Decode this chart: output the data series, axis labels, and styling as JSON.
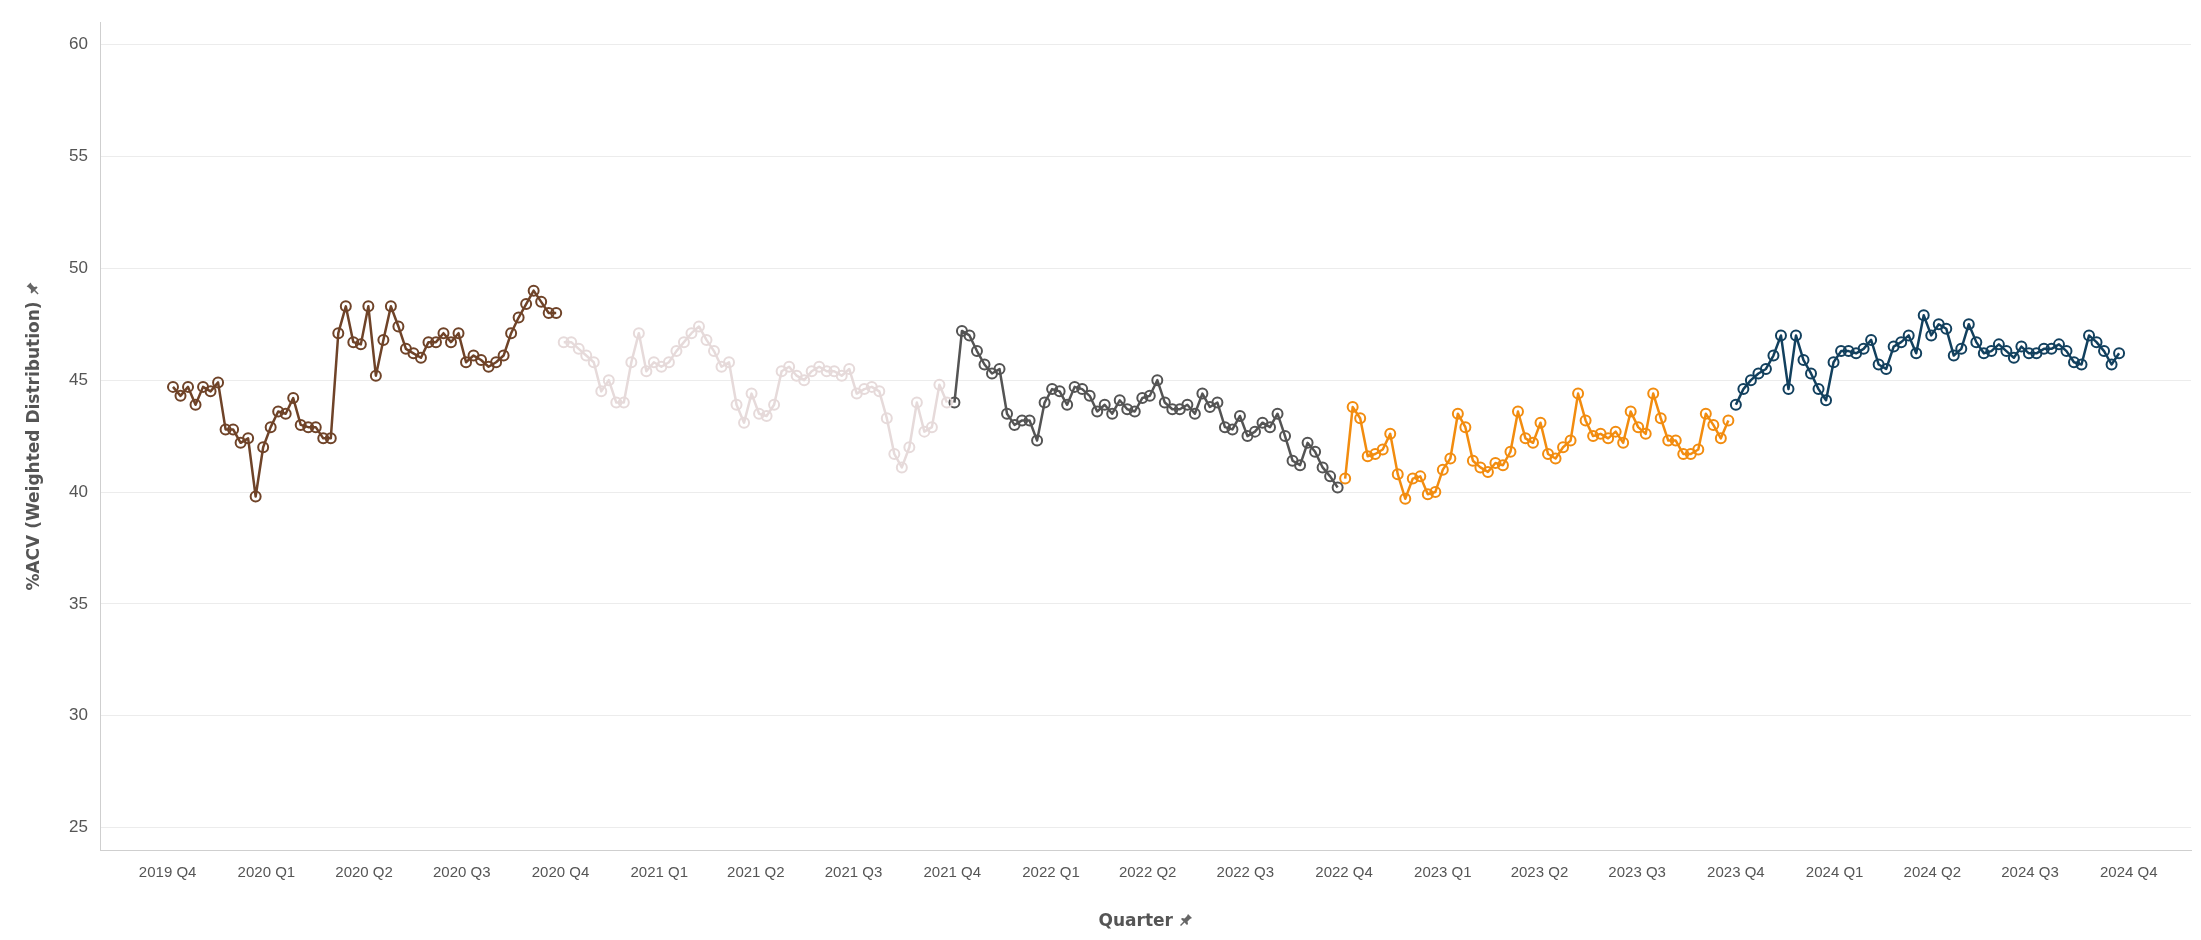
{
  "chart_data": {
    "type": "line",
    "xlabel": "Quarter",
    "ylabel": "%ACV (Weighted Distribution)",
    "xlim": [
      "2019-07-30",
      "2024-11-28"
    ],
    "ylim": [
      24,
      61
    ],
    "xticks": [
      {
        "value": "2019-10-01",
        "label": "2019 Q4"
      },
      {
        "value": "2020-01-01",
        "label": "2020 Q1"
      },
      {
        "value": "2020-04-01",
        "label": "2020 Q2"
      },
      {
        "value": "2020-07-01",
        "label": "2020 Q3"
      },
      {
        "value": "2020-10-01",
        "label": "2020 Q4"
      },
      {
        "value": "2021-01-01",
        "label": "2021 Q1"
      },
      {
        "value": "2021-04-01",
        "label": "2021 Q2"
      },
      {
        "value": "2021-07-01",
        "label": "2021 Q3"
      },
      {
        "value": "2021-10-01",
        "label": "2021 Q4"
      },
      {
        "value": "2022-01-01",
        "label": "2022 Q1"
      },
      {
        "value": "2022-04-01",
        "label": "2022 Q2"
      },
      {
        "value": "2022-07-01",
        "label": "2022 Q3"
      },
      {
        "value": "2022-10-01",
        "label": "2022 Q4"
      },
      {
        "value": "2023-01-01",
        "label": "2023 Q1"
      },
      {
        "value": "2023-04-01",
        "label": "2023 Q2"
      },
      {
        "value": "2023-07-01",
        "label": "2023 Q3"
      },
      {
        "value": "2023-10-01",
        "label": "2023 Q4"
      },
      {
        "value": "2024-01-01",
        "label": "2024 Q1"
      },
      {
        "value": "2024-04-01",
        "label": "2024 Q2"
      },
      {
        "value": "2024-07-01",
        "label": "2024 Q3"
      },
      {
        "value": "2024-10-01",
        "label": "2024 Q4"
      }
    ],
    "yticks": [
      25,
      30,
      35,
      40,
      45,
      50,
      55,
      60
    ],
    "grid": "y",
    "legend": false,
    "marker": "circle",
    "line_style": "solid",
    "series": [
      {
        "color": "#6f4328",
        "x": [
          "2019-10-06",
          "2019-10-13",
          "2019-10-20",
          "2019-10-27",
          "2019-11-03",
          "2019-11-10",
          "2019-11-17",
          "2019-11-24",
          "2019-12-01",
          "2019-12-08",
          "2019-12-15",
          "2019-12-22",
          "2019-12-29",
          "2020-01-05",
          "2020-01-12",
          "2020-01-19",
          "2020-01-26",
          "2020-02-02",
          "2020-02-09",
          "2020-02-16",
          "2020-02-23",
          "2020-03-01",
          "2020-03-08",
          "2020-03-15",
          "2020-03-22",
          "2020-03-29",
          "2020-04-05",
          "2020-04-12",
          "2020-04-19",
          "2020-04-26",
          "2020-05-03",
          "2020-05-10",
          "2020-05-17",
          "2020-05-24",
          "2020-05-31",
          "2020-06-07",
          "2020-06-14",
          "2020-06-21",
          "2020-06-28",
          "2020-07-05",
          "2020-07-12",
          "2020-07-19",
          "2020-07-26",
          "2020-08-02",
          "2020-08-09",
          "2020-08-16",
          "2020-08-23",
          "2020-08-30",
          "2020-09-06",
          "2020-09-13",
          "2020-09-20",
          "2020-09-27"
        ],
        "values": [
          44.7,
          44.3,
          44.7,
          43.9,
          44.7,
          44.5,
          44.9,
          42.8,
          42.8,
          42.2,
          42.4,
          39.8,
          42.0,
          42.9,
          43.6,
          43.5,
          44.2,
          43.0,
          42.9,
          42.9,
          42.4,
          42.4,
          47.1,
          48.3,
          46.7,
          46.6,
          48.3,
          45.2,
          46.8,
          48.3,
          47.4,
          46.4,
          46.2,
          46.0,
          46.7,
          46.7,
          47.1,
          46.7,
          47.1,
          45.8,
          46.1,
          45.9,
          45.6,
          45.8,
          46.1,
          47.1,
          47.8,
          48.4,
          49.0,
          48.5,
          48.0,
          48.0
        ]
      },
      {
        "color": "#e6dada",
        "x": [
          "2020-10-04",
          "2020-10-11",
          "2020-10-18",
          "2020-10-25",
          "2020-11-01",
          "2020-11-08",
          "2020-11-15",
          "2020-11-22",
          "2020-11-29",
          "2020-12-06",
          "2020-12-13",
          "2020-12-20",
          "2020-12-27",
          "2021-01-03",
          "2021-01-10",
          "2021-01-17",
          "2021-01-24",
          "2021-01-31",
          "2021-02-07",
          "2021-02-14",
          "2021-02-21",
          "2021-02-28",
          "2021-03-07",
          "2021-03-14",
          "2021-03-21",
          "2021-03-28",
          "2021-04-04",
          "2021-04-11",
          "2021-04-18",
          "2021-04-25",
          "2021-05-02",
          "2021-05-09",
          "2021-05-16",
          "2021-05-23",
          "2021-05-30",
          "2021-06-06",
          "2021-06-13",
          "2021-06-20",
          "2021-06-27",
          "2021-07-04",
          "2021-07-11",
          "2021-07-18",
          "2021-07-25",
          "2021-08-01",
          "2021-08-08",
          "2021-08-15",
          "2021-08-22",
          "2021-08-29",
          "2021-09-05",
          "2021-09-12",
          "2021-09-19",
          "2021-09-26"
        ],
        "values": [
          46.7,
          46.7,
          46.4,
          46.1,
          45.8,
          44.5,
          45.0,
          44.0,
          44.0,
          45.8,
          47.1,
          45.4,
          45.8,
          45.6,
          45.8,
          46.3,
          46.7,
          47.1,
          47.4,
          46.8,
          46.3,
          45.6,
          45.8,
          43.9,
          43.1,
          44.4,
          43.5,
          43.4,
          43.9,
          45.4,
          45.6,
          45.2,
          45.0,
          45.4,
          45.6,
          45.4,
          45.4,
          45.2,
          45.5,
          44.4,
          44.6,
          44.7,
          44.5,
          43.3,
          41.7,
          41.1,
          42.0,
          44.0,
          42.7,
          42.9,
          44.8,
          44.0
        ]
      },
      {
        "color": "#545454",
        "x": [
          "2021-10-03",
          "2021-10-10",
          "2021-10-17",
          "2021-10-24",
          "2021-10-31",
          "2021-11-07",
          "2021-11-14",
          "2021-11-21",
          "2021-11-28",
          "2021-12-05",
          "2021-12-12",
          "2021-12-19",
          "2021-12-26",
          "2022-01-02",
          "2022-01-09",
          "2022-01-16",
          "2022-01-23",
          "2022-01-30",
          "2022-02-06",
          "2022-02-13",
          "2022-02-20",
          "2022-02-27",
          "2022-03-06",
          "2022-03-13",
          "2022-03-20",
          "2022-03-27",
          "2022-04-03",
          "2022-04-10",
          "2022-04-17",
          "2022-04-24",
          "2022-05-01",
          "2022-05-08",
          "2022-05-15",
          "2022-05-22",
          "2022-05-29",
          "2022-06-05",
          "2022-06-12",
          "2022-06-19",
          "2022-06-26",
          "2022-07-03",
          "2022-07-10",
          "2022-07-17",
          "2022-07-24",
          "2022-07-31",
          "2022-08-07",
          "2022-08-14",
          "2022-08-21",
          "2022-08-28",
          "2022-09-04",
          "2022-09-11",
          "2022-09-18",
          "2022-09-25"
        ],
        "values": [
          44.0,
          47.2,
          47.0,
          46.3,
          45.7,
          45.3,
          45.5,
          43.5,
          43.0,
          43.2,
          43.2,
          42.3,
          44.0,
          44.6,
          44.5,
          43.9,
          44.7,
          44.6,
          44.3,
          43.6,
          43.9,
          43.5,
          44.1,
          43.7,
          43.6,
          44.2,
          44.3,
          45.0,
          44.0,
          43.7,
          43.7,
          43.9,
          43.5,
          44.4,
          43.8,
          44.0,
          42.9,
          42.8,
          43.4,
          42.5,
          42.7,
          43.1,
          42.9,
          43.5,
          42.5,
          41.4,
          41.2,
          42.2,
          41.8,
          41.1,
          40.7,
          40.2
        ]
      },
      {
        "color": "#f28c0f",
        "x": [
          "2022-10-02",
          "2022-10-09",
          "2022-10-16",
          "2022-10-23",
          "2022-10-30",
          "2022-11-06",
          "2022-11-13",
          "2022-11-20",
          "2022-11-27",
          "2022-12-04",
          "2022-12-11",
          "2022-12-18",
          "2022-12-25",
          "2023-01-01",
          "2023-01-08",
          "2023-01-15",
          "2023-01-22",
          "2023-01-29",
          "2023-02-05",
          "2023-02-12",
          "2023-02-19",
          "2023-02-26",
          "2023-03-05",
          "2023-03-12",
          "2023-03-19",
          "2023-03-26",
          "2023-04-02",
          "2023-04-09",
          "2023-04-16",
          "2023-04-23",
          "2023-04-30",
          "2023-05-07",
          "2023-05-14",
          "2023-05-21",
          "2023-05-28",
          "2023-06-04",
          "2023-06-11",
          "2023-06-18",
          "2023-06-25",
          "2023-07-02",
          "2023-07-09",
          "2023-07-16",
          "2023-07-23",
          "2023-07-30",
          "2023-08-06",
          "2023-08-13",
          "2023-08-20",
          "2023-08-27",
          "2023-09-03",
          "2023-09-10",
          "2023-09-17",
          "2023-09-24"
        ],
        "values": [
          40.6,
          43.8,
          43.3,
          41.6,
          41.7,
          41.9,
          42.6,
          40.8,
          39.7,
          40.6,
          40.7,
          39.9,
          40.0,
          41.0,
          41.5,
          43.5,
          42.9,
          41.4,
          41.1,
          40.9,
          41.3,
          41.2,
          41.8,
          43.6,
          42.4,
          42.2,
          43.1,
          41.7,
          41.5,
          42.0,
          42.3,
          44.4,
          43.2,
          42.5,
          42.6,
          42.4,
          42.7,
          42.2,
          43.6,
          42.9,
          42.6,
          44.4,
          43.3,
          42.3,
          42.3,
          41.7,
          41.7,
          41.9,
          43.5,
          43.0,
          42.4,
          43.2
        ]
      },
      {
        "color": "#12405e",
        "x": [
          "2023-10-01",
          "2023-10-08",
          "2023-10-15",
          "2023-10-22",
          "2023-10-29",
          "2023-11-05",
          "2023-11-12",
          "2023-11-19",
          "2023-11-26",
          "2023-12-03",
          "2023-12-10",
          "2023-12-17",
          "2023-12-24",
          "2023-12-31",
          "2024-01-07",
          "2024-01-14",
          "2024-01-21",
          "2024-01-28",
          "2024-02-04",
          "2024-02-11",
          "2024-02-18",
          "2024-02-25",
          "2024-03-03",
          "2024-03-10",
          "2024-03-17",
          "2024-03-24",
          "2024-03-31",
          "2024-04-07",
          "2024-04-14",
          "2024-04-21",
          "2024-04-28",
          "2024-05-05",
          "2024-05-12",
          "2024-05-19",
          "2024-05-26",
          "2024-06-02",
          "2024-06-09",
          "2024-06-16",
          "2024-06-23",
          "2024-06-30",
          "2024-07-07",
          "2024-07-14",
          "2024-07-21",
          "2024-07-28",
          "2024-08-04",
          "2024-08-11",
          "2024-08-18",
          "2024-08-25",
          "2024-09-01",
          "2024-09-08",
          "2024-09-15",
          "2024-09-22"
        ],
        "values": [
          43.9,
          44.6,
          45.0,
          45.3,
          45.5,
          46.1,
          47.0,
          44.6,
          47.0,
          45.9,
          45.3,
          44.6,
          44.1,
          45.8,
          46.3,
          46.3,
          46.2,
          46.4,
          46.8,
          45.7,
          45.5,
          46.5,
          46.7,
          47.0,
          46.2,
          47.9,
          47.0,
          47.5,
          47.3,
          46.1,
          46.4,
          47.5,
          46.7,
          46.2,
          46.3,
          46.6,
          46.3,
          46.0,
          46.5,
          46.2,
          46.2,
          46.4,
          46.4,
          46.6,
          46.3,
          45.8,
          45.7,
          47.0,
          46.7,
          46.3,
          45.7,
          46.2
        ]
      }
    ]
  }
}
